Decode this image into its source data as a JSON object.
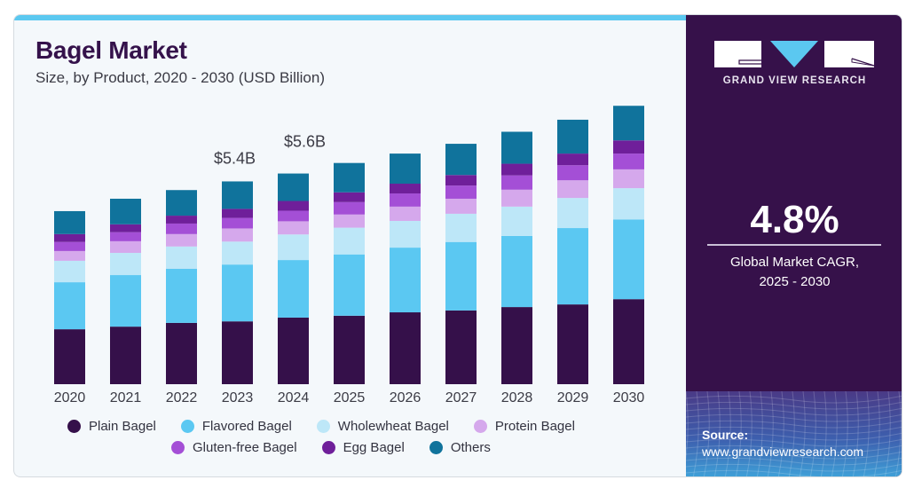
{
  "header": {
    "title": "Bagel Market",
    "subtitle": "Size, by Product, 2020 - 2030 (USD Billion)"
  },
  "brand": {
    "name": "GRAND VIEW RESEARCH",
    "colors": {
      "panel": "#36114a",
      "accent": "#5bc8f0"
    }
  },
  "stats": {
    "cagr_value": "4.8%",
    "cagr_label_line1": "Global Market CAGR,",
    "cagr_label_line2": "2025 - 2030"
  },
  "source": {
    "label": "Source:",
    "url": "www.grandviewresearch.com"
  },
  "chart_data": {
    "type": "bar",
    "stacked": true,
    "title": "Bagel Market",
    "subtitle": "Size, by Product, 2020 - 2030 (USD Billion)",
    "xlabel": "",
    "ylabel": "USD Billion",
    "ylim": [
      0,
      7.5
    ],
    "grid": false,
    "legend_position": "bottom",
    "categories": [
      "2020",
      "2021",
      "2022",
      "2023",
      "2024",
      "2025",
      "2026",
      "2027",
      "2028",
      "2029",
      "2030"
    ],
    "series": [
      {
        "name": "Plain Bagel",
        "color": "#35104a",
        "values": [
          1.46,
          1.53,
          1.63,
          1.67,
          1.77,
          1.82,
          1.91,
          1.96,
          2.05,
          2.12,
          2.26
        ]
      },
      {
        "name": "Flavored Bagel",
        "color": "#5bc8f2",
        "values": [
          1.25,
          1.37,
          1.44,
          1.51,
          1.53,
          1.63,
          1.72,
          1.82,
          1.89,
          2.03,
          2.12
        ]
      },
      {
        "name": "Wholewheat Bagel",
        "color": "#bde7f8",
        "values": [
          0.57,
          0.59,
          0.59,
          0.61,
          0.68,
          0.71,
          0.71,
          0.75,
          0.78,
          0.8,
          0.83
        ]
      },
      {
        "name": "Protein Bagel",
        "color": "#d5a8ec",
        "values": [
          0.26,
          0.31,
          0.33,
          0.35,
          0.35,
          0.35,
          0.38,
          0.4,
          0.45,
          0.47,
          0.5
        ]
      },
      {
        "name": "Gluten-free Bagel",
        "color": "#a44fd6",
        "values": [
          0.24,
          0.24,
          0.28,
          0.28,
          0.28,
          0.33,
          0.35,
          0.35,
          0.38,
          0.4,
          0.42
        ]
      },
      {
        "name": "Egg Bagel",
        "color": "#6f1f9a",
        "values": [
          0.21,
          0.21,
          0.21,
          0.24,
          0.26,
          0.26,
          0.26,
          0.28,
          0.31,
          0.31,
          0.35
        ]
      },
      {
        "name": "Others",
        "color": "#10739c",
        "values": [
          0.61,
          0.68,
          0.68,
          0.73,
          0.73,
          0.78,
          0.8,
          0.83,
          0.85,
          0.9,
          0.92
        ]
      }
    ],
    "annotations": [
      {
        "category": "2023",
        "text": "$5.4B"
      },
      {
        "category": "2024",
        "text": "$5.6B"
      }
    ]
  }
}
